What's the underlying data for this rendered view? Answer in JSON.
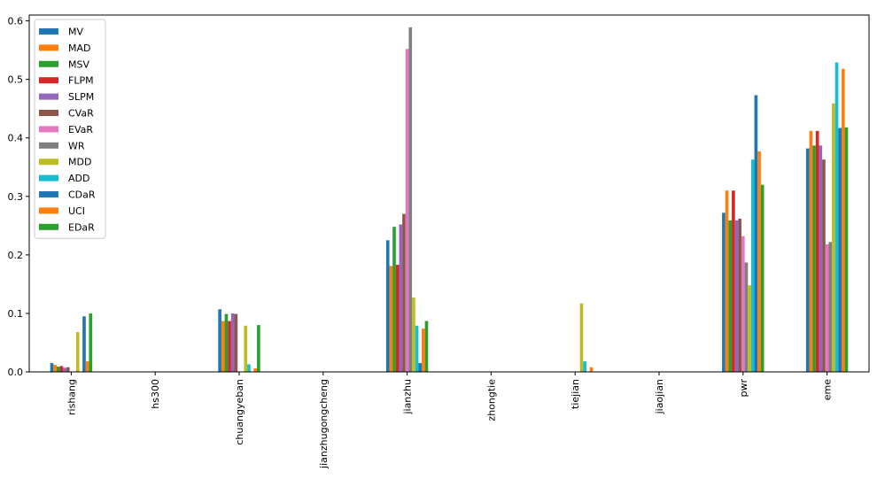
{
  "chart_data": {
    "type": "bar",
    "title": "",
    "xlabel": "",
    "ylabel": "",
    "ylim": [
      0,
      0.61
    ],
    "yticks": [
      "0.0",
      "0.1",
      "0.2",
      "0.3",
      "0.4",
      "0.5",
      "0.6"
    ],
    "grid": false,
    "legend_position": "top-left",
    "categories": [
      "rishang",
      "hs300",
      "chuangyeban",
      "jianzhugongcheng",
      "jianzhu",
      "zhongtie",
      "tiejian",
      "jiaojian",
      "pwr",
      "eme"
    ],
    "series": [
      {
        "name": "MV",
        "color": "#1f77b4",
        "values": [
          0.015,
          0,
          0.107,
          0,
          0.225,
          0,
          0,
          0,
          0.272,
          0.382
        ]
      },
      {
        "name": "MAD",
        "color": "#ff7f0e",
        "values": [
          0.012,
          0,
          0.087,
          0,
          0.181,
          0,
          0,
          0,
          0.31,
          0.412
        ]
      },
      {
        "name": "MSV",
        "color": "#2ca02c",
        "values": [
          0.009,
          0,
          0.099,
          0,
          0.248,
          0,
          0,
          0,
          0.259,
          0.387
        ]
      },
      {
        "name": "FLPM",
        "color": "#d62728",
        "values": [
          0.01,
          0,
          0.087,
          0,
          0.183,
          0,
          0,
          0,
          0.31,
          0.412
        ]
      },
      {
        "name": "SLPM",
        "color": "#9467bd",
        "values": [
          0.007,
          0,
          0.1,
          0,
          0.252,
          0,
          0,
          0,
          0.259,
          0.387
        ]
      },
      {
        "name": "CVaR",
        "color": "#8c564b",
        "values": [
          0.008,
          0,
          0.099,
          0,
          0.27,
          0,
          0,
          0,
          0.262,
          0.363
        ]
      },
      {
        "name": "EVaR",
        "color": "#e377c2",
        "values": [
          0,
          0,
          0,
          0,
          0.552,
          0,
          0,
          0,
          0.232,
          0.218
        ]
      },
      {
        "name": "WR",
        "color": "#7f7f7f",
        "values": [
          0,
          0,
          0,
          0,
          0.589,
          0,
          0,
          0,
          0.187,
          0.222
        ]
      },
      {
        "name": "MDD",
        "color": "#bcbd22",
        "values": [
          0.068,
          0,
          0.079,
          0,
          0.127,
          0,
          0.117,
          0,
          0.148,
          0.459
        ]
      },
      {
        "name": "ADD",
        "color": "#17becf",
        "values": [
          0,
          0,
          0.013,
          0,
          0.079,
          0,
          0.018,
          0,
          0.363,
          0.529
        ]
      },
      {
        "name": "CDaR",
        "color": "#1f77b4",
        "values": [
          0.095,
          0,
          0,
          0,
          0.015,
          0,
          0,
          0,
          0.473,
          0.417
        ]
      },
      {
        "name": "UCI",
        "color": "#ff7f0e",
        "values": [
          0.018,
          0,
          0.006,
          0,
          0.074,
          0,
          0.008,
          0,
          0.377,
          0.518
        ]
      },
      {
        "name": "EDaR",
        "color": "#2ca02c",
        "values": [
          0.1,
          0,
          0.08,
          0,
          0.087,
          0,
          0,
          0,
          0.32,
          0.418
        ]
      }
    ]
  }
}
